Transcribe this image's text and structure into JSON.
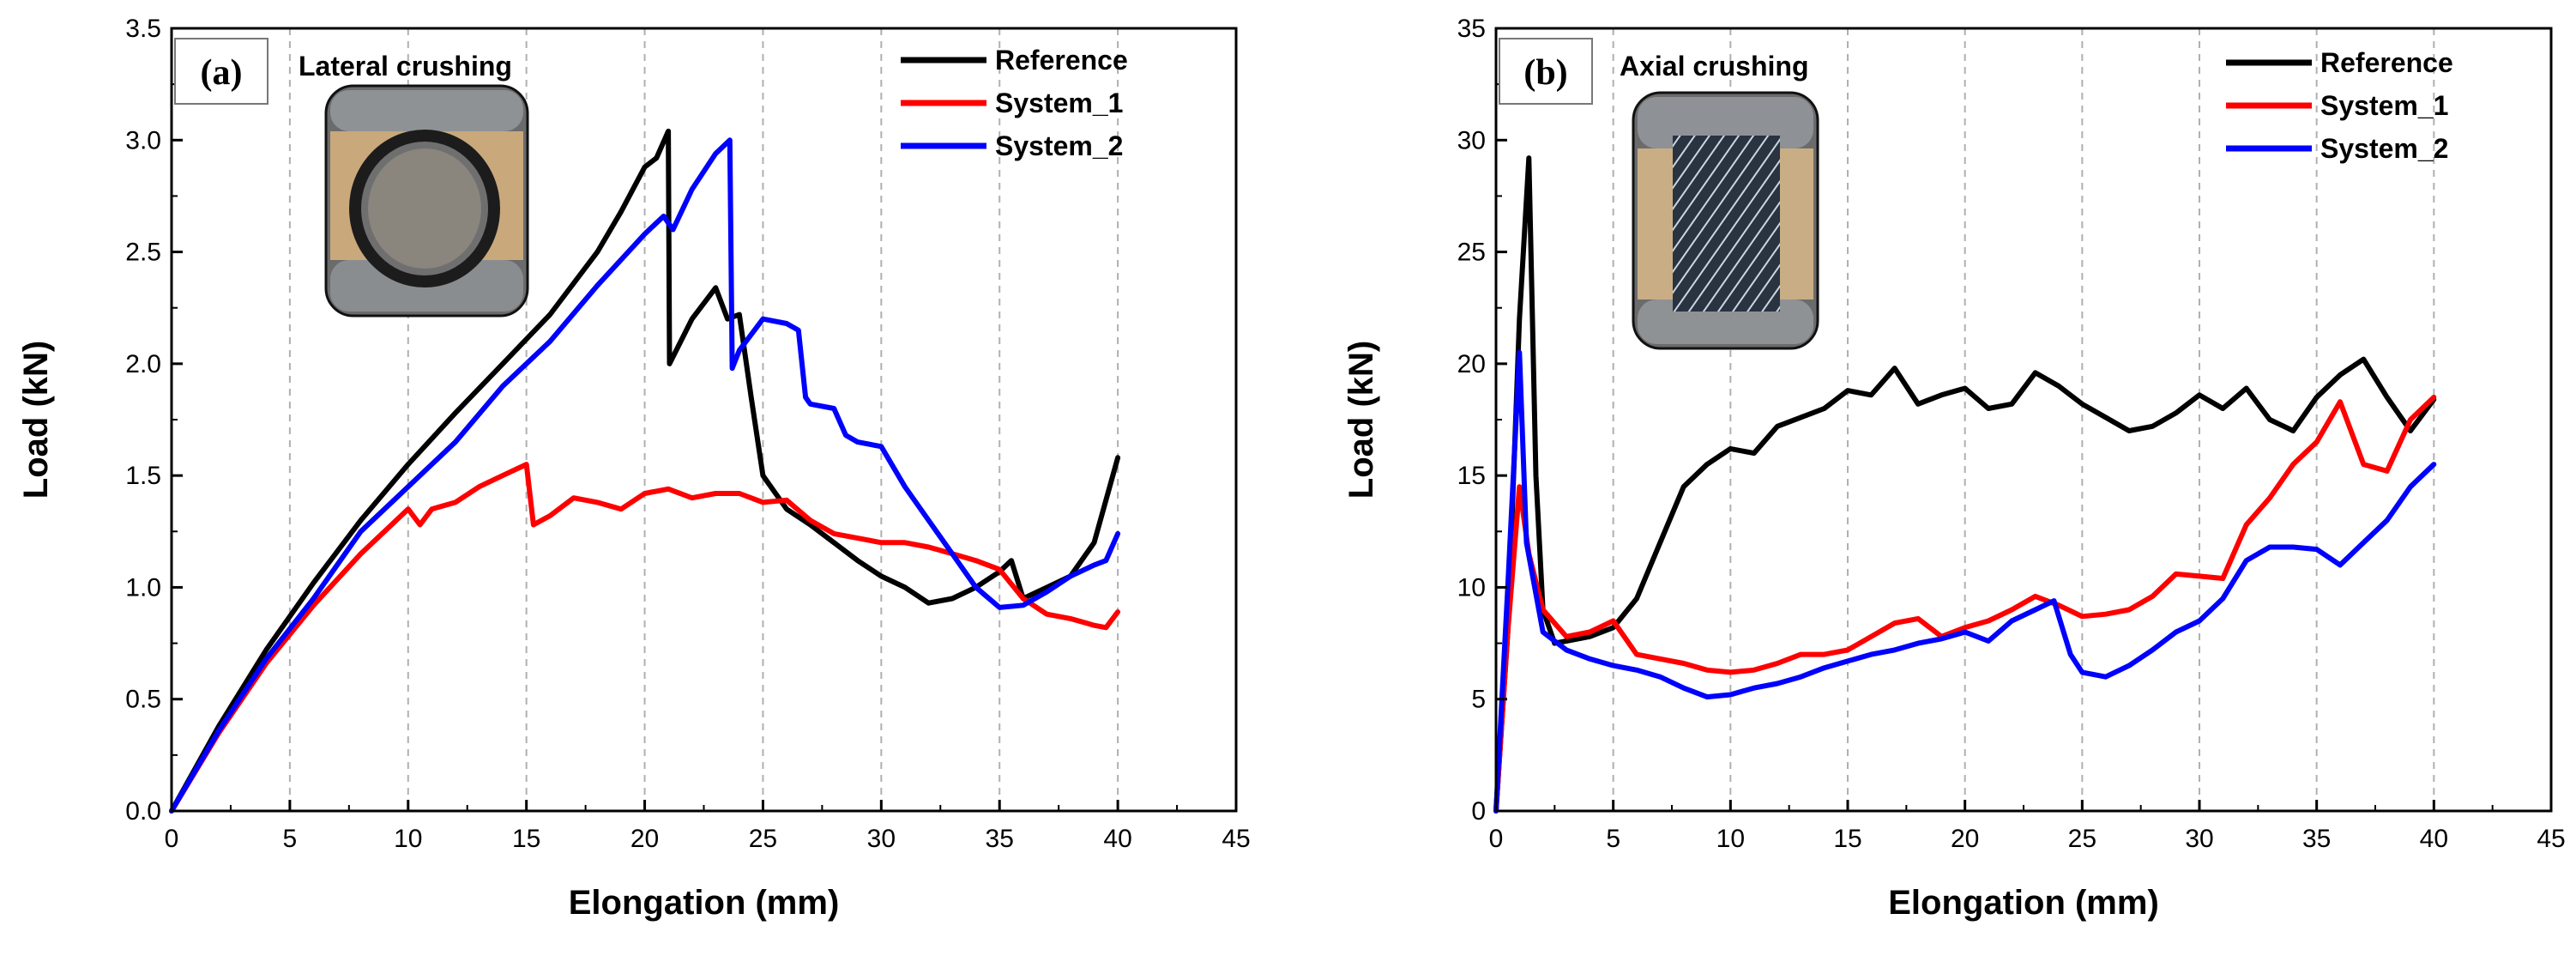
{
  "chart_data": [
    {
      "type": "line",
      "panel_label": "(a)",
      "inset_title": "Lateral crushing",
      "inset_image": "ring-specimen-lateral-crushing-photo",
      "xlabel": "Elongation (mm)",
      "ylabel": "Load (kN)",
      "xlim": [
        0,
        45
      ],
      "ylim": [
        0,
        3.5
      ],
      "xticks": [
        0,
        5,
        10,
        15,
        20,
        25,
        30,
        35,
        40,
        45
      ],
      "yticks": [
        0.0,
        0.5,
        1.0,
        1.5,
        2.0,
        2.5,
        3.0,
        3.5
      ],
      "xtick_labels": [
        "0",
        "5",
        "10",
        "15",
        "20",
        "25",
        "30",
        "35",
        "40",
        "45"
      ],
      "ytick_labels": [
        "0.0",
        "0.5",
        "1.0",
        "1.5",
        "2.0",
        "2.5",
        "3.0",
        "3.5"
      ],
      "grid": "vertical dashed",
      "legend_position": "top-right",
      "series": [
        {
          "name": "Reference",
          "color": "#000000",
          "points": [
            [
              0,
              0
            ],
            [
              2,
              0.38
            ],
            [
              4,
              0.72
            ],
            [
              6,
              1.02
            ],
            [
              8,
              1.3
            ],
            [
              10,
              1.55
            ],
            [
              12,
              1.78
            ],
            [
              14,
              2.0
            ],
            [
              16,
              2.22
            ],
            [
              18,
              2.5
            ],
            [
              19,
              2.68
            ],
            [
              20,
              2.88
            ],
            [
              20.5,
              2.92
            ],
            [
              21,
              3.04
            ],
            [
              21.05,
              2.0
            ],
            [
              22,
              2.2
            ],
            [
              23,
              2.34
            ],
            [
              23.5,
              2.2
            ],
            [
              24,
              2.22
            ],
            [
              24.5,
              1.85
            ],
            [
              25,
              1.5
            ],
            [
              26,
              1.35
            ],
            [
              27,
              1.28
            ],
            [
              28,
              1.2
            ],
            [
              29,
              1.12
            ],
            [
              30,
              1.05
            ],
            [
              31,
              1.0
            ],
            [
              32,
              0.93
            ],
            [
              33,
              0.95
            ],
            [
              34,
              1.0
            ],
            [
              35,
              1.07
            ],
            [
              35.5,
              1.12
            ],
            [
              36,
              0.95
            ],
            [
              37,
              1.0
            ],
            [
              38,
              1.05
            ],
            [
              39,
              1.2
            ],
            [
              40,
              1.58
            ]
          ]
        },
        {
          "name": "System_1",
          "color": "#ff0000",
          "points": [
            [
              0,
              0
            ],
            [
              2,
              0.35
            ],
            [
              4,
              0.66
            ],
            [
              6,
              0.92
            ],
            [
              8,
              1.15
            ],
            [
              9,
              1.25
            ],
            [
              10,
              1.35
            ],
            [
              10.5,
              1.28
            ],
            [
              11,
              1.35
            ],
            [
              12,
              1.38
            ],
            [
              13,
              1.45
            ],
            [
              14,
              1.5
            ],
            [
              15,
              1.55
            ],
            [
              15.3,
              1.28
            ],
            [
              16,
              1.32
            ],
            [
              17,
              1.4
            ],
            [
              18,
              1.38
            ],
            [
              19,
              1.35
            ],
            [
              20,
              1.42
            ],
            [
              21,
              1.44
            ],
            [
              22,
              1.4
            ],
            [
              23,
              1.42
            ],
            [
              24,
              1.42
            ],
            [
              25,
              1.38
            ],
            [
              26,
              1.39
            ],
            [
              27,
              1.3
            ],
            [
              28,
              1.24
            ],
            [
              29,
              1.22
            ],
            [
              30,
              1.2
            ],
            [
              31,
              1.2
            ],
            [
              32,
              1.18
            ],
            [
              33,
              1.15
            ],
            [
              34,
              1.12
            ],
            [
              35,
              1.08
            ],
            [
              36,
              0.95
            ],
            [
              37,
              0.88
            ],
            [
              38,
              0.86
            ],
            [
              39,
              0.83
            ],
            [
              39.5,
              0.82
            ],
            [
              40,
              0.89
            ]
          ]
        },
        {
          "name": "System_2",
          "color": "#0000ff",
          "points": [
            [
              0,
              0
            ],
            [
              2,
              0.36
            ],
            [
              4,
              0.68
            ],
            [
              6,
              0.95
            ],
            [
              8,
              1.25
            ],
            [
              10,
              1.45
            ],
            [
              12,
              1.65
            ],
            [
              14,
              1.9
            ],
            [
              16,
              2.1
            ],
            [
              18,
              2.35
            ],
            [
              20,
              2.58
            ],
            [
              20.8,
              2.66
            ],
            [
              21.2,
              2.6
            ],
            [
              22,
              2.78
            ],
            [
              23,
              2.94
            ],
            [
              23.6,
              3.0
            ],
            [
              23.7,
              1.98
            ],
            [
              24,
              2.06
            ],
            [
              25,
              2.2
            ],
            [
              26,
              2.18
            ],
            [
              26.5,
              2.15
            ],
            [
              26.8,
              1.85
            ],
            [
              27,
              1.82
            ],
            [
              28,
              1.8
            ],
            [
              28.5,
              1.68
            ],
            [
              29,
              1.65
            ],
            [
              30,
              1.63
            ],
            [
              31,
              1.45
            ],
            [
              32,
              1.3
            ],
            [
              33,
              1.15
            ],
            [
              34,
              1.0
            ],
            [
              35,
              0.91
            ],
            [
              36,
              0.92
            ],
            [
              37,
              0.98
            ],
            [
              38,
              1.05
            ],
            [
              39,
              1.1
            ],
            [
              39.5,
              1.12
            ],
            [
              40,
              1.24
            ]
          ]
        }
      ]
    },
    {
      "type": "line",
      "panel_label": "(b)",
      "inset_title": "Axial crushing",
      "inset_image": "tube-specimen-axial-crushing-photo",
      "xlabel": "Elongation (mm)",
      "ylabel": "Load (kN)",
      "xlim": [
        0,
        45
      ],
      "ylim": [
        0,
        35
      ],
      "xticks": [
        0,
        5,
        10,
        15,
        20,
        25,
        30,
        35,
        40,
        45
      ],
      "yticks": [
        0,
        5,
        10,
        15,
        20,
        25,
        30,
        35
      ],
      "xtick_labels": [
        "0",
        "5",
        "10",
        "15",
        "20",
        "25",
        "30",
        "35",
        "40",
        "45"
      ],
      "ytick_labels": [
        "0",
        "5",
        "10",
        "15",
        "20",
        "25",
        "30",
        "35"
      ],
      "grid": "vertical dashed",
      "legend_position": "top-right",
      "series": [
        {
          "name": "Reference",
          "color": "#000000",
          "points": [
            [
              0,
              0
            ],
            [
              0.5,
              8
            ],
            [
              1.0,
              22
            ],
            [
              1.4,
              29.2
            ],
            [
              1.7,
              15
            ],
            [
              2,
              9
            ],
            [
              2.5,
              7.5
            ],
            [
              3,
              7.6
            ],
            [
              4,
              7.8
            ],
            [
              5,
              8.2
            ],
            [
              6,
              9.5
            ],
            [
              7,
              12
            ],
            [
              8,
              14.5
            ],
            [
              9,
              15.5
            ],
            [
              10,
              16.2
            ],
            [
              11,
              16
            ],
            [
              12,
              17.2
            ],
            [
              13,
              17.6
            ],
            [
              14,
              18
            ],
            [
              15,
              18.8
            ],
            [
              16,
              18.6
            ],
            [
              17,
              19.8
            ],
            [
              18,
              18.2
            ],
            [
              19,
              18.6
            ],
            [
              20,
              18.9
            ],
            [
              21,
              18.0
            ],
            [
              22,
              18.2
            ],
            [
              23,
              19.6
            ],
            [
              24,
              19.0
            ],
            [
              25,
              18.2
            ],
            [
              26,
              17.6
            ],
            [
              27,
              17.0
            ],
            [
              28,
              17.2
            ],
            [
              29,
              17.8
            ],
            [
              30,
              18.6
            ],
            [
              31,
              18.0
            ],
            [
              32,
              18.9
            ],
            [
              33,
              17.5
            ],
            [
              34,
              17.0
            ],
            [
              35,
              18.5
            ],
            [
              36,
              19.5
            ],
            [
              37,
              20.2
            ],
            [
              38,
              18.5
            ],
            [
              39,
              17.0
            ],
            [
              40,
              18.4
            ]
          ]
        },
        {
          "name": "System_1",
          "color": "#ff0000",
          "points": [
            [
              0,
              0
            ],
            [
              0.5,
              8
            ],
            [
              1.0,
              14.5
            ],
            [
              1.4,
              11.5
            ],
            [
              2,
              9
            ],
            [
              3,
              7.8
            ],
            [
              4,
              8.0
            ],
            [
              5,
              8.5
            ],
            [
              6,
              7.0
            ],
            [
              7,
              6.8
            ],
            [
              8,
              6.6
            ],
            [
              9,
              6.3
            ],
            [
              10,
              6.2
            ],
            [
              11,
              6.3
            ],
            [
              12,
              6.6
            ],
            [
              13,
              7.0
            ],
            [
              14,
              7.0
            ],
            [
              15,
              7.2
            ],
            [
              16,
              7.8
            ],
            [
              17,
              8.4
            ],
            [
              18,
              8.6
            ],
            [
              19,
              7.8
            ],
            [
              20,
              8.2
            ],
            [
              21,
              8.5
            ],
            [
              22,
              9.0
            ],
            [
              23,
              9.6
            ],
            [
              24,
              9.2
            ],
            [
              25,
              8.7
            ],
            [
              26,
              8.8
            ],
            [
              27,
              9.0
            ],
            [
              28,
              9.6
            ],
            [
              29,
              10.6
            ],
            [
              30,
              10.5
            ],
            [
              31,
              10.4
            ],
            [
              32,
              12.8
            ],
            [
              33,
              14.0
            ],
            [
              34,
              15.5
            ],
            [
              35,
              16.5
            ],
            [
              36,
              18.3
            ],
            [
              37,
              15.5
            ],
            [
              38,
              15.2
            ],
            [
              39,
              17.5
            ],
            [
              40,
              18.5
            ]
          ]
        },
        {
          "name": "System_2",
          "color": "#0000ff",
          "points": [
            [
              0,
              0
            ],
            [
              0.5,
              10
            ],
            [
              1.0,
              20.5
            ],
            [
              1.3,
              12
            ],
            [
              2,
              8
            ],
            [
              3,
              7.2
            ],
            [
              4,
              6.8
            ],
            [
              5,
              6.5
            ],
            [
              6,
              6.3
            ],
            [
              7,
              6.0
            ],
            [
              8,
              5.5
            ],
            [
              9,
              5.1
            ],
            [
              10,
              5.2
            ],
            [
              11,
              5.5
            ],
            [
              12,
              5.7
            ],
            [
              13,
              6.0
            ],
            [
              14,
              6.4
            ],
            [
              15,
              6.7
            ],
            [
              16,
              7.0
            ],
            [
              17,
              7.2
            ],
            [
              18,
              7.5
            ],
            [
              19,
              7.7
            ],
            [
              20,
              8.0
            ],
            [
              21,
              7.6
            ],
            [
              22,
              8.5
            ],
            [
              23,
              9.0
            ],
            [
              23.8,
              9.4
            ],
            [
              24.5,
              7.0
            ],
            [
              25,
              6.2
            ],
            [
              26,
              6.0
            ],
            [
              27,
              6.5
            ],
            [
              28,
              7.2
            ],
            [
              29,
              8.0
            ],
            [
              30,
              8.5
            ],
            [
              31,
              9.5
            ],
            [
              32,
              11.2
            ],
            [
              33,
              11.8
            ],
            [
              34,
              11.8
            ],
            [
              35,
              11.7
            ],
            [
              36,
              11.0
            ],
            [
              37,
              12.0
            ],
            [
              38,
              13.0
            ],
            [
              39,
              14.5
            ],
            [
              40,
              15.5
            ]
          ]
        }
      ]
    }
  ]
}
